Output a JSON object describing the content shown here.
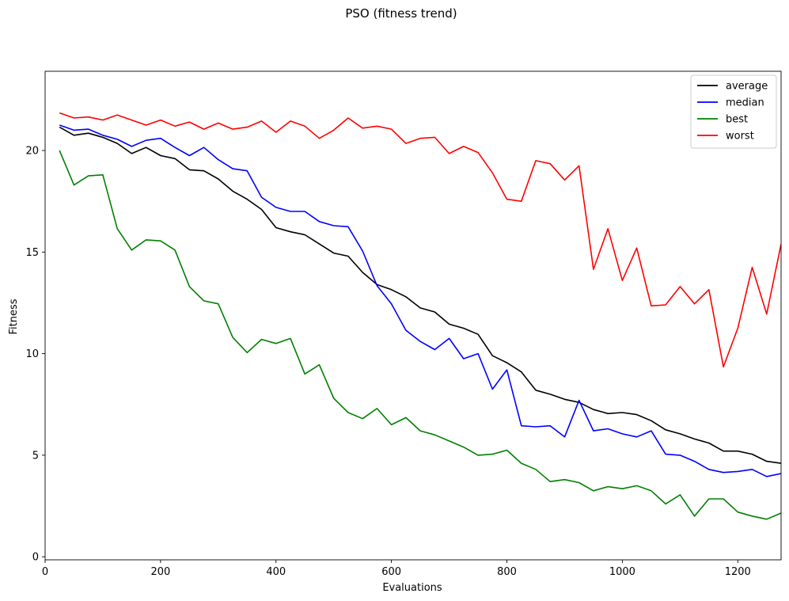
{
  "chart_data": {
    "type": "line",
    "title": "PSO (fitness trend)",
    "xlabel": "Evaluations",
    "ylabel": "Fitness",
    "xlim": [
      0,
      1275
    ],
    "ylim": [
      -0.15,
      23.9
    ],
    "xticks": [
      0,
      200,
      400,
      600,
      800,
      1000,
      1200
    ],
    "yticks": [
      0,
      5,
      10,
      15,
      20
    ],
    "grid": false,
    "legend_position": "top-right",
    "x": [
      25,
      50,
      75,
      100,
      125,
      150,
      175,
      200,
      225,
      250,
      275,
      300,
      325,
      350,
      375,
      400,
      425,
      450,
      475,
      500,
      525,
      550,
      575,
      600,
      625,
      650,
      675,
      700,
      725,
      750,
      775,
      800,
      825,
      850,
      875,
      900,
      925,
      950,
      975,
      1000,
      1025,
      1050,
      1075,
      1100,
      1125,
      1150,
      1175,
      1200,
      1225,
      1250,
      1275
    ],
    "series": [
      {
        "name": "average",
        "color": "#000000",
        "values": [
          21.15,
          20.75,
          20.85,
          20.65,
          20.35,
          19.85,
          20.15,
          19.75,
          19.6,
          19.05,
          19.0,
          18.6,
          18.0,
          17.6,
          17.1,
          16.2,
          16.0,
          15.85,
          15.4,
          14.95,
          14.8,
          14.0,
          13.4,
          13.15,
          12.8,
          12.25,
          12.05,
          11.45,
          11.25,
          10.95,
          9.9,
          9.55,
          9.1,
          8.2,
          8.0,
          7.75,
          7.6,
          7.25,
          7.05,
          7.1,
          7.0,
          6.7,
          6.25,
          6.05,
          5.8,
          5.6,
          5.2,
          5.2,
          5.05,
          4.7,
          4.6
        ]
      },
      {
        "name": "median",
        "color": "#0000ff",
        "values": [
          21.25,
          21.0,
          21.05,
          20.75,
          20.55,
          20.2,
          20.5,
          20.6,
          20.15,
          19.75,
          20.15,
          19.55,
          19.1,
          19.0,
          17.7,
          17.2,
          17.0,
          17.0,
          16.5,
          16.3,
          16.25,
          15.05,
          13.35,
          12.45,
          11.15,
          10.6,
          10.2,
          10.75,
          9.75,
          10.0,
          8.25,
          9.2,
          6.45,
          6.4,
          6.45,
          5.9,
          7.7,
          6.2,
          6.3,
          6.05,
          5.9,
          6.2,
          5.05,
          5.0,
          4.7,
          4.3,
          4.15,
          4.2,
          4.3,
          3.95,
          4.1
        ]
      },
      {
        "name": "best",
        "color": "#008000",
        "values": [
          20.0,
          18.3,
          18.75,
          18.8,
          16.15,
          15.1,
          15.6,
          15.55,
          15.1,
          13.3,
          12.6,
          12.45,
          10.8,
          10.05,
          10.7,
          10.5,
          10.75,
          9.0,
          9.45,
          7.8,
          7.1,
          6.8,
          7.3,
          6.5,
          6.85,
          6.2,
          6.0,
          5.7,
          5.4,
          5.0,
          5.05,
          5.25,
          4.6,
          4.3,
          3.7,
          3.8,
          3.65,
          3.25,
          3.45,
          3.35,
          3.5,
          3.25,
          2.6,
          3.05,
          2.0,
          2.85,
          2.85,
          2.2,
          2.0,
          1.85,
          2.15
        ]
      },
      {
        "name": "worst",
        "color": "#ff0000",
        "values": [
          21.85,
          21.6,
          21.65,
          21.5,
          21.75,
          21.5,
          21.25,
          21.5,
          21.2,
          21.4,
          21.05,
          21.35,
          21.05,
          21.15,
          21.45,
          20.9,
          21.45,
          21.2,
          20.6,
          21.0,
          21.6,
          21.1,
          21.2,
          21.05,
          20.35,
          20.6,
          20.65,
          19.85,
          20.2,
          19.9,
          18.9,
          17.6,
          17.5,
          19.5,
          19.35,
          18.55,
          19.25,
          14.15,
          16.15,
          13.6,
          15.2,
          12.35,
          12.4,
          13.3,
          12.45,
          13.15,
          9.35,
          11.25,
          14.25,
          11.95,
          15.4
        ]
      }
    ]
  }
}
